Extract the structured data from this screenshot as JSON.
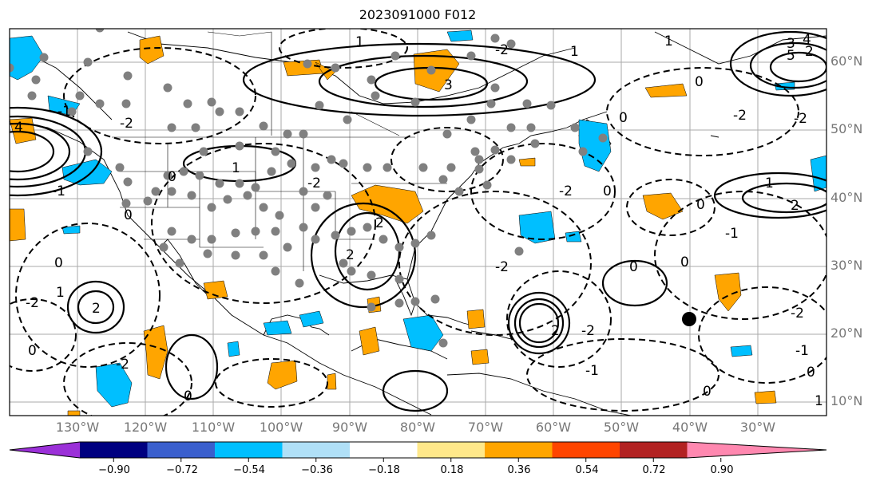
{
  "title": "2023091000 F012",
  "lat_labels": [
    "60°N",
    "50°N",
    "40°N",
    "30°N",
    "20°N",
    "10°N"
  ],
  "lon_labels": [
    "130°W",
    "120°W",
    "110°W",
    "100°W",
    "90°W",
    "80°W",
    "70°W",
    "60°W",
    "50°W",
    "40°W",
    "30°W"
  ],
  "colorbar": {
    "ticks": [
      "−0.90",
      "−0.72",
      "−0.54",
      "−0.36",
      "−0.18",
      "0.18",
      "0.36",
      "0.54",
      "0.72",
      "0.90"
    ],
    "colors": [
      "#9b30d8",
      "#000080",
      "#3a5fcd",
      "#00bfff",
      "#b0e0f7",
      "#ffffff",
      "#ffe88a",
      "#ffa500",
      "#ff4500",
      "#b22222",
      "#ff88b0"
    ]
  },
  "contour_labels": [
    "2",
    "3",
    "4",
    "5",
    "1",
    "0",
    "-2",
    "-1",
    "2",
    "1"
  ],
  "colors": {
    "positive_shading": "#ffa500",
    "negative_shading": "#00bfff",
    "station": "#808080",
    "marker": "#000000"
  }
}
